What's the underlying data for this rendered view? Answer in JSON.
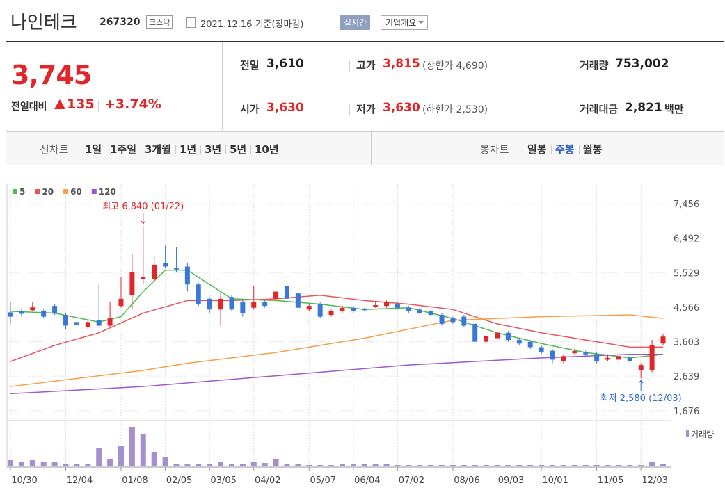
{
  "header": {
    "name": "나인테크",
    "code": "267320",
    "market": "코스닥",
    "date": "2021.12.16 기준(장마감)",
    "realtime": "실시간",
    "company": "기업개요"
  },
  "quote": {
    "price": "3,745",
    "change_label": "전일대비",
    "change": "135",
    "rate": "+3.74%",
    "items": [
      {
        "label": "전일",
        "value": "3,610"
      },
      {
        "label": "고가",
        "value": "3,815",
        "note": "(상한가 4,690)"
      },
      {
        "label": "거래량",
        "value": "753,002"
      },
      {
        "label": "시가",
        "value": "3,630"
      },
      {
        "label": "저가",
        "value": "3,630",
        "note": "(하한가 2,530)"
      },
      {
        "label": "거래대금",
        "value": "2,821",
        "unit": "백만"
      }
    ]
  },
  "tabs": {
    "left_label": "선차트",
    "left": [
      "1일",
      "1주일",
      "3개월",
      "1년",
      "3년",
      "5년",
      "10년"
    ],
    "right_label": "봉차트",
    "right": [
      "일봉",
      "주봉",
      "월봉"
    ],
    "active_right": 1
  },
  "chart_data": {
    "type": "candlestick",
    "categories": [
      "10/30",
      null,
      null,
      null,
      null,
      "12/04",
      null,
      null,
      null,
      null,
      "01/08",
      null,
      null,
      null,
      "02/05",
      null,
      null,
      null,
      "03/05",
      null,
      null,
      null,
      "04/02",
      null,
      null,
      null,
      null,
      "05/07",
      null,
      null,
      null,
      "06/04",
      null,
      null,
      null,
      "07/02",
      null,
      null,
      null,
      null,
      "08/06",
      null,
      null,
      null,
      "09/03",
      null,
      null,
      null,
      "10/01",
      null,
      null,
      null,
      null,
      "11/05",
      null,
      null,
      null,
      "12/03",
      null,
      null
    ],
    "open": [
      4420,
      4450,
      4480,
      4450,
      4600,
      4350,
      4150,
      4000,
      4200,
      4050,
      4600,
      4900,
      5350,
      5350,
      5800,
      5650,
      5700,
      5200,
      4800,
      4500,
      4850,
      4700,
      4550,
      4700,
      4800,
      5150,
      4950,
      4500,
      4650,
      4350,
      4450,
      4550,
      4520,
      4580,
      4600,
      4650,
      4550,
      4500,
      4450,
      4350,
      4250,
      4300,
      4100,
      3600,
      3700,
      3850,
      3650,
      3600,
      3450,
      3350,
      3050,
      3280,
      3300,
      3250,
      3100,
      3100,
      3150,
      2800,
      2800,
      3550
    ],
    "high": [
      4700,
      4500,
      4700,
      4500,
      4650,
      4400,
      4200,
      4200,
      5200,
      4700,
      5400,
      6050,
      6840,
      6000,
      6300,
      6250,
      5800,
      5250,
      4850,
      4950,
      4900,
      4750,
      5150,
      4750,
      5350,
      5300,
      5000,
      4650,
      4700,
      4500,
      4600,
      4600,
      4550,
      4700,
      4750,
      4700,
      4600,
      4550,
      4500,
      4400,
      4300,
      4350,
      4150,
      3800,
      3950,
      3900,
      3700,
      3650,
      3500,
      3400,
      3250,
      3400,
      3350,
      3300,
      3250,
      3250,
      3200,
      3000,
      3650,
      3815
    ],
    "low": [
      4100,
      4300,
      4450,
      4250,
      4350,
      3950,
      4000,
      3950,
      4000,
      4000,
      4550,
      4500,
      5200,
      5300,
      5650,
      5550,
      5000,
      4600,
      4400,
      4050,
      4450,
      4300,
      4500,
      4550,
      4750,
      4750,
      4500,
      4450,
      4250,
      4300,
      4400,
      4400,
      4450,
      4550,
      4550,
      4500,
      4400,
      4350,
      4300,
      4050,
      4100,
      4000,
      3550,
      3550,
      3450,
      3600,
      3500,
      3400,
      3250,
      3000,
      3000,
      3250,
      3200,
      3000,
      3050,
      3000,
      3000,
      2580,
      2750,
      3500
    ],
    "close": [
      4300,
      4380,
      4560,
      4300,
      4400,
      4050,
      4080,
      4150,
      4050,
      4250,
      4800,
      5550,
      5400,
      5750,
      5700,
      5620,
      5200,
      4650,
      4500,
      4800,
      4500,
      4400,
      4700,
      4600,
      5000,
      4800,
      4550,
      4600,
      4300,
      4450,
      4550,
      4450,
      4480,
      4620,
      4700,
      4550,
      4450,
      4400,
      4350,
      4100,
      4150,
      4050,
      3600,
      3750,
      3850,
      3650,
      3550,
      3450,
      3300,
      3100,
      3200,
      3340,
      3250,
      3050,
      3150,
      3200,
      3050,
      2950,
      3500,
      3745
    ],
    "up_color": "#e0262b",
    "down_color": "#3a78d8",
    "ylim": [
      1400,
      8000
    ],
    "yticks": [
      {
        "value": 7456,
        "label": "7,456"
      },
      {
        "value": 6492,
        "label": "6,492"
      },
      {
        "value": 5529,
        "label": "5,529"
      },
      {
        "value": 4566,
        "label": "4,566"
      },
      {
        "value": 3603,
        "label": "3,603"
      },
      {
        "value": 2639,
        "label": "2,639"
      },
      {
        "value": 1676,
        "label": "1,676"
      }
    ],
    "grid": true,
    "moving_averages": [
      {
        "name": "5",
        "color": "#4fb84f",
        "x": [
          0,
          4,
          8,
          10,
          12,
          14,
          16,
          20,
          24,
          28,
          32,
          36,
          40,
          44,
          48,
          52,
          56,
          59
        ],
        "values": [
          4450,
          4400,
          4150,
          4300,
          5000,
          5600,
          5600,
          4800,
          4750,
          4650,
          4500,
          4550,
          4250,
          3850,
          3550,
          3300,
          3150,
          3250
        ]
      },
      {
        "name": "20",
        "color": "#e8545a",
        "x": [
          0,
          4,
          8,
          12,
          16,
          20,
          24,
          28,
          32,
          36,
          40,
          44,
          48,
          52,
          56,
          59
        ],
        "values": [
          3050,
          3500,
          3850,
          4400,
          4750,
          4750,
          4800,
          4900,
          4750,
          4650,
          4500,
          4100,
          3850,
          3650,
          3450,
          3450
        ]
      },
      {
        "name": "60",
        "color": "#f5a048",
        "x": [
          0,
          8,
          12,
          16,
          24,
          32,
          40,
          48,
          56,
          59
        ],
        "values": [
          2350,
          2650,
          2800,
          3000,
          3300,
          3700,
          4200,
          4300,
          4350,
          4250
        ]
      },
      {
        "name": "120",
        "color": "#9b59d0",
        "x": [
          0,
          12,
          24,
          36,
          48,
          56,
          59
        ],
        "values": [
          2150,
          2350,
          2650,
          2950,
          3150,
          3250,
          3250
        ]
      }
    ],
    "volume": {
      "name": "거래량",
      "color": "#a58fd0",
      "values": [
        800,
        600,
        800,
        500,
        500,
        300,
        300,
        300,
        2500,
        1000,
        2800,
        5500,
        4500,
        2000,
        1300,
        300,
        300,
        300,
        300,
        500,
        300,
        200,
        500,
        400,
        1000,
        300,
        300,
        100,
        100,
        100,
        300,
        200,
        200,
        200,
        200,
        100,
        100,
        100,
        100,
        100,
        100,
        100,
        100,
        100,
        100,
        100,
        100,
        100,
        100,
        100,
        100,
        100,
        100,
        100,
        100,
        100,
        100,
        100,
        500,
        300
      ]
    },
    "annotations": [
      {
        "text": "최고 6,840 (01/22)",
        "x": 12,
        "y": 6840,
        "color": "#e0262b"
      },
      {
        "text": "최저 2,580 (12/03)",
        "x": 57,
        "y": 2580,
        "color": "#2f6fc7"
      }
    ]
  }
}
